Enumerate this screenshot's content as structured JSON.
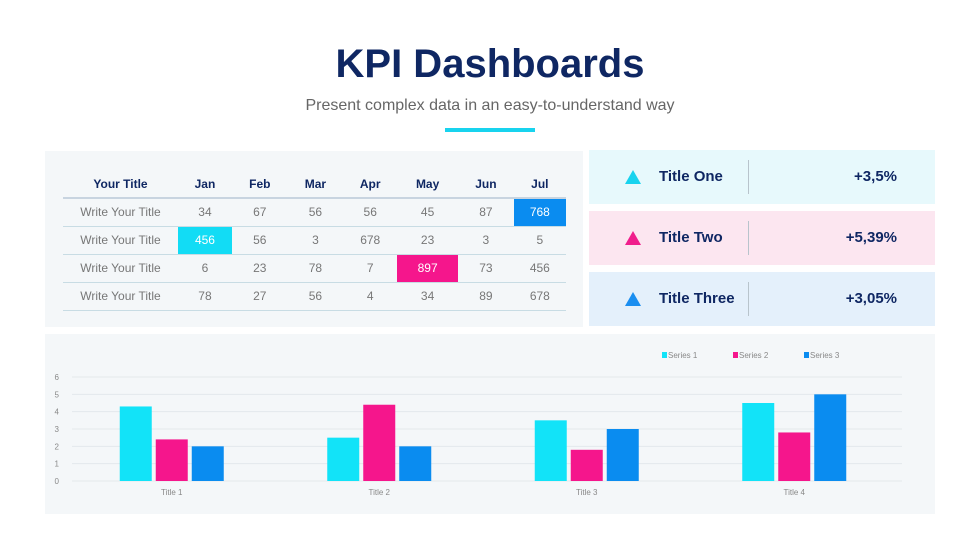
{
  "header": {
    "title": "KPI Dashboards",
    "subtitle": "Present complex data in an easy-to-understand way"
  },
  "table": {
    "headers": [
      "Your Title",
      "Jan",
      "Feb",
      "Mar",
      "Apr",
      "May",
      "Jun",
      "Jul"
    ],
    "rows": [
      {
        "label": "Write Your Title",
        "values": [
          "34",
          "67",
          "56",
          "56",
          "45",
          "87",
          "768"
        ]
      },
      {
        "label": "Write Your Title",
        "values": [
          "456",
          "56",
          "3",
          "678",
          "23",
          "3",
          "5"
        ]
      },
      {
        "label": "Write Your Title",
        "values": [
          "6",
          "23",
          "78",
          "7",
          "897",
          "73",
          "456"
        ]
      },
      {
        "label": "Write Your Title",
        "values": [
          "78",
          "27",
          "56",
          "4",
          "34",
          "89",
          "678"
        ]
      }
    ],
    "highlights": [
      {
        "row": 0,
        "col": 6,
        "color": "#0a8cf0"
      },
      {
        "row": 1,
        "col": 0,
        "color": "#12dcf5"
      },
      {
        "row": 2,
        "col": 4,
        "color": "#f5168c"
      }
    ]
  },
  "kpis": [
    {
      "label": "Title One",
      "value": "+3,5%",
      "color": "#18d3ee",
      "bg": "#e7f9fc"
    },
    {
      "label": "Title Two",
      "value": "+5,39%",
      "color": "#f01e8c",
      "bg": "#fce6f0"
    },
    {
      "label": "Title Three",
      "value": "+3,05%",
      "color": "#1a8ef0",
      "bg": "#e4f0fb"
    }
  ],
  "chart_data": {
    "type": "bar",
    "categories": [
      "Title 1",
      "Title 2",
      "Title 3",
      "Title 4"
    ],
    "series": [
      {
        "name": "Series 1",
        "color": "#12e3f8",
        "values": [
          4.3,
          2.5,
          3.5,
          4.5
        ]
      },
      {
        "name": "Series 2",
        "color": "#f5168c",
        "values": [
          2.4,
          4.4,
          1.8,
          2.8
        ]
      },
      {
        "name": "Series 3",
        "color": "#0a8cf0",
        "values": [
          2.0,
          2.0,
          3.0,
          5.0
        ]
      }
    ],
    "ylim": [
      0,
      6
    ],
    "yticks": [
      "0",
      "1",
      "2",
      "3",
      "4",
      "5",
      "6"
    ],
    "grid": true,
    "legend": "top-right",
    "title": "",
    "xlabel": "",
    "ylabel": ""
  }
}
